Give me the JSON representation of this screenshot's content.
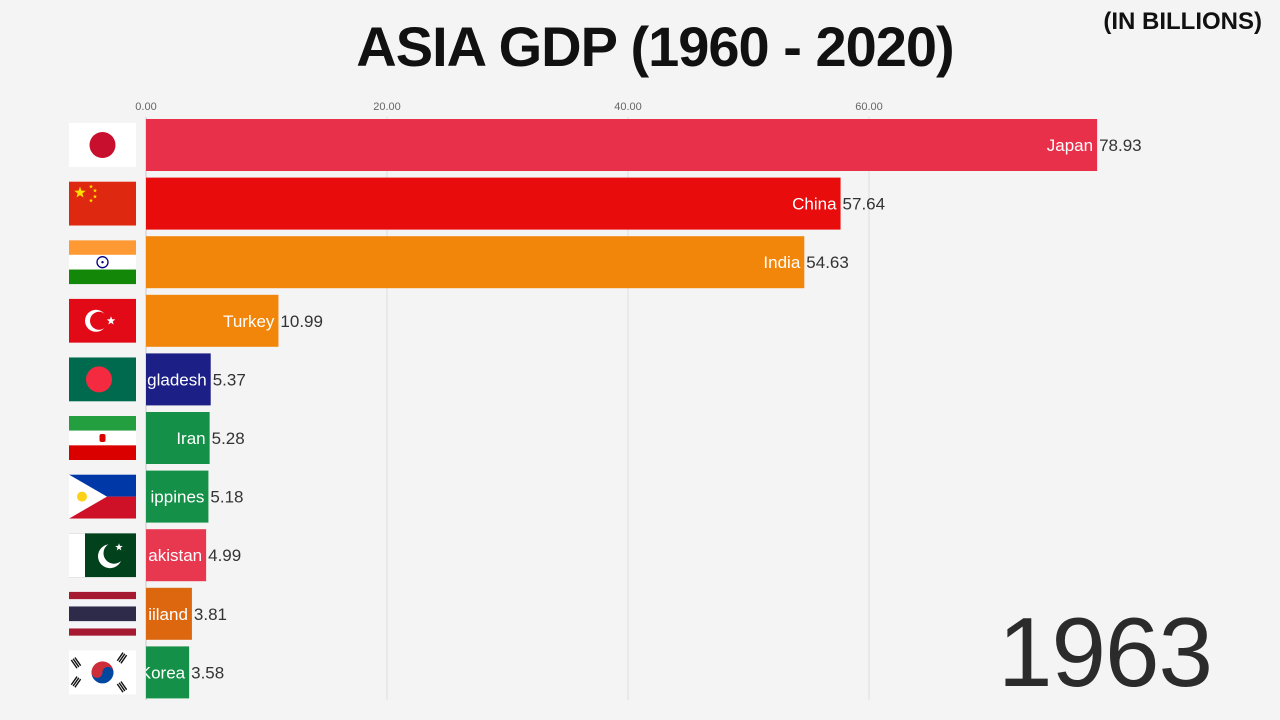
{
  "header": {
    "title": "ASIA GDP (1960 - 2020)",
    "unit": "(IN BILLIONS)"
  },
  "year": "1963",
  "chart_data": {
    "type": "bar",
    "orientation": "horizontal",
    "title": "ASIA GDP (1960 - 2020)",
    "xlim": [
      0,
      80
    ],
    "xticks": [
      0,
      20,
      40,
      60
    ],
    "xtick_labels": [
      "0.00",
      "20.00",
      "40.00",
      "60.00"
    ],
    "grid": true,
    "categories": [
      "Japan",
      "China",
      "India",
      "Turkey",
      "Bangladesh",
      "Iran",
      "Philippines",
      "Pakistan",
      "Thailand",
      "Korea"
    ],
    "bar_labels": [
      "Japan",
      "China",
      "India",
      "Turkey",
      "gladesh",
      "Iran",
      "ippines",
      "akistan",
      "iiland",
      "Korea"
    ],
    "values": [
      78.93,
      57.64,
      54.63,
      10.99,
      5.37,
      5.28,
      5.18,
      4.99,
      3.81,
      3.58
    ],
    "value_labels": [
      "78.93",
      "57.64",
      "54.63",
      "10.99",
      "5.37",
      "5.28",
      "5.18",
      "4.99",
      "3.81",
      "3.58"
    ],
    "colors": [
      "#e8304a",
      "#e80c0c",
      "#f2860a",
      "#f2860a",
      "#1b1f86",
      "#159048",
      "#159048",
      "#e8384f",
      "#dc670e",
      "#159048"
    ],
    "flags": [
      "japan-flag",
      "china-flag",
      "india-flag",
      "turkey-flag",
      "bangladesh-flag",
      "iran-flag",
      "philippines-flag",
      "pakistan-flag",
      "thailand-flag",
      "korea-flag"
    ]
  }
}
